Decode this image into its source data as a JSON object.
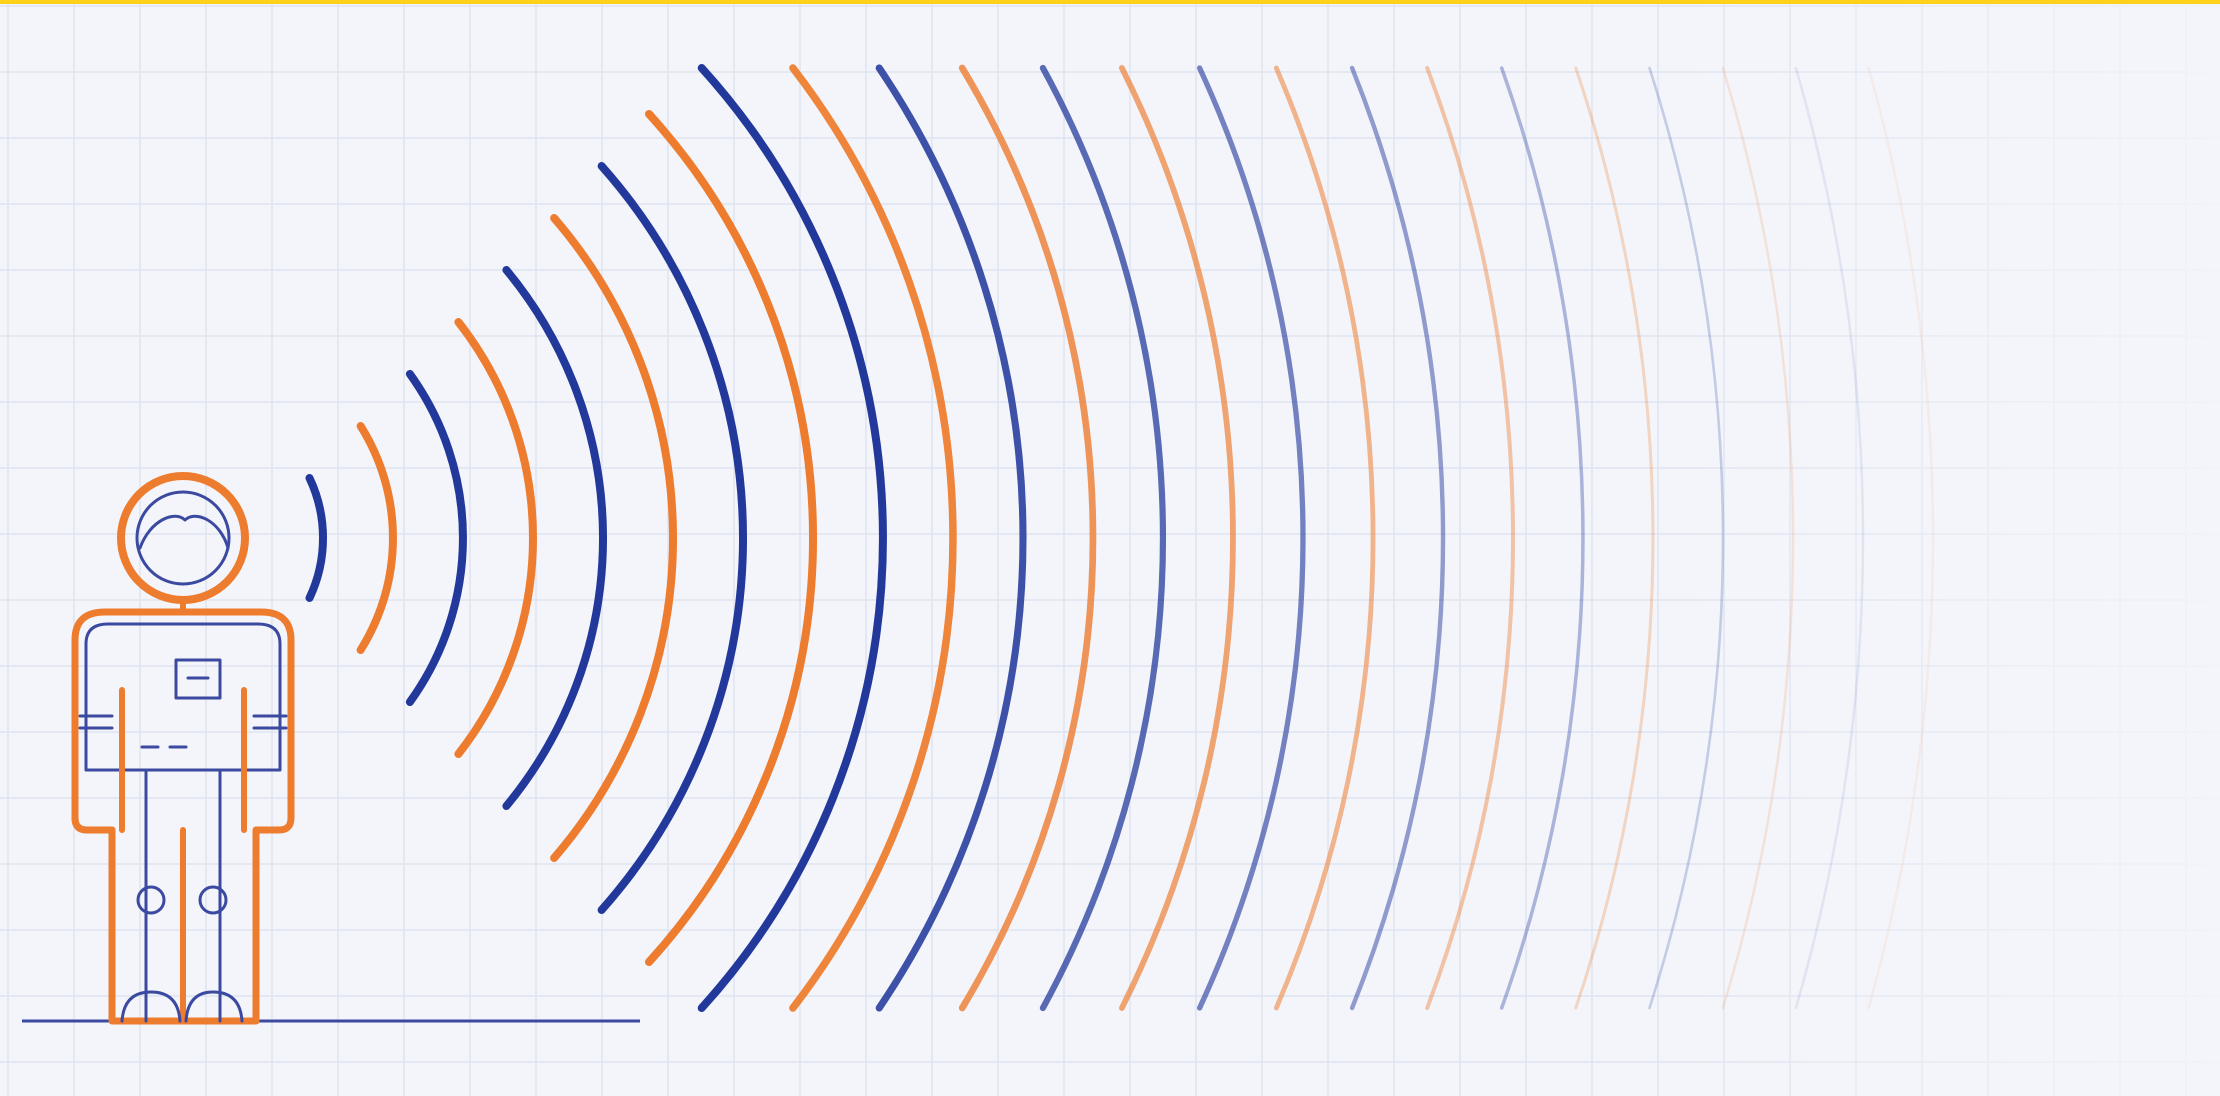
{
  "scene": {
    "description_visible_text": "",
    "colors": {
      "background": "#f3f5fa",
      "grid": "#dfe4ef",
      "top_border": "#ffd11a",
      "orange": "#ee7c2f",
      "blue": "#22389b",
      "ground": "#3b4aa0"
    },
    "icons": [
      "astronaut-figure",
      "sound-wave-arcs",
      "ground-line"
    ],
    "wave_count": 24
  }
}
